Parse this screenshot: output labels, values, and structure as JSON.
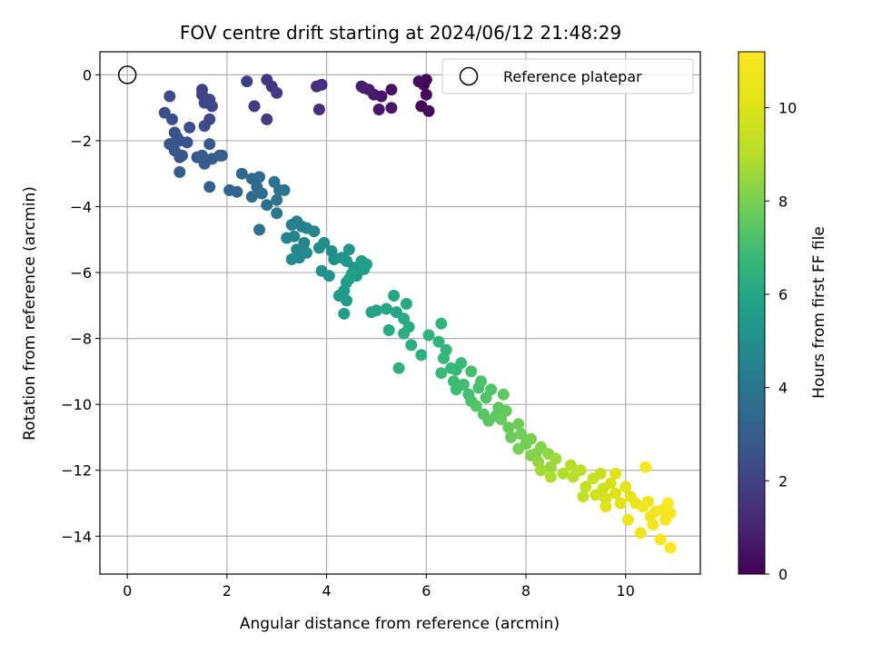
{
  "chart_data": {
    "type": "scatter",
    "title": "FOV centre drift starting at 2024/06/12 21:48:29",
    "xlabel": "Angular distance from reference (arcmin)",
    "ylabel": "Rotation from reference (arcmin)",
    "xlim": [
      -0.55,
      11.5
    ],
    "ylim": [
      -15.15,
      0.7
    ],
    "xticks": [
      0,
      2,
      4,
      6,
      8,
      10
    ],
    "yticks": [
      0,
      -2,
      -4,
      -6,
      -8,
      -10,
      -12,
      -14
    ],
    "grid": true,
    "colormap": "viridis",
    "colorbar": {
      "label": "Hours from first FF file",
      "range": [
        0,
        11.2
      ],
      "ticks": [
        0,
        2,
        4,
        6,
        8,
        10
      ]
    },
    "legend": {
      "position": "top-right",
      "entries": [
        {
          "label": "Reference platepar",
          "marker": "open-circle"
        }
      ]
    },
    "reference_point": {
      "x": 0,
      "y": 0
    },
    "colors": {
      "grid": "#b0b0b0",
      "reference_edge": "#000000",
      "spine": "#000000"
    },
    "series": [
      {
        "points": [
          [
            6.0,
            -0.15,
            0.1
          ],
          [
            5.95,
            -0.3,
            0.15
          ],
          [
            5.9,
            -0.95,
            0.2
          ],
          [
            6.05,
            -1.1,
            0.25
          ],
          [
            6.0,
            -0.6,
            0.3
          ],
          [
            5.85,
            -0.2,
            0.35
          ],
          [
            5.3,
            -0.45,
            0.5
          ],
          [
            5.1,
            -0.65,
            0.55
          ],
          [
            5.05,
            -1.05,
            0.6
          ],
          [
            5.3,
            -1.0,
            0.6
          ],
          [
            4.95,
            -0.6,
            0.7
          ],
          [
            4.85,
            -0.45,
            0.8
          ],
          [
            4.75,
            -0.4,
            0.85
          ],
          [
            4.7,
            -0.35,
            0.9
          ],
          [
            3.9,
            -0.3,
            1.3
          ],
          [
            3.8,
            -0.35,
            1.35
          ],
          [
            3.85,
            -1.05,
            1.4
          ],
          [
            2.8,
            -0.15,
            1.6
          ],
          [
            2.9,
            -0.35,
            1.65
          ],
          [
            3.0,
            -0.55,
            1.7
          ],
          [
            2.8,
            -1.35,
            1.75
          ],
          [
            2.55,
            -0.95,
            1.8
          ],
          [
            2.4,
            -0.2,
            1.85
          ],
          [
            1.5,
            -0.45,
            2.0
          ],
          [
            1.5,
            -0.6,
            2.05
          ],
          [
            1.65,
            -0.75,
            2.1
          ],
          [
            1.55,
            -0.85,
            2.15
          ],
          [
            1.7,
            -0.95,
            2.2
          ],
          [
            1.65,
            -1.35,
            2.2
          ],
          [
            0.85,
            -0.65,
            2.3
          ],
          [
            1.55,
            -1.55,
            2.35
          ],
          [
            0.9,
            -1.35,
            2.45
          ],
          [
            1.25,
            -1.6,
            2.45
          ],
          [
            0.75,
            -1.15,
            2.5
          ],
          [
            0.95,
            -1.75,
            2.5
          ],
          [
            1.0,
            -1.9,
            2.55
          ],
          [
            1.05,
            -2.0,
            2.6
          ],
          [
            1.2,
            -2.05,
            2.6
          ],
          [
            0.85,
            -2.1,
            2.65
          ],
          [
            0.95,
            -2.3,
            2.7
          ],
          [
            1.05,
            -2.5,
            2.7
          ],
          [
            1.1,
            -2.45,
            2.75
          ],
          [
            1.65,
            -2.1,
            2.8
          ],
          [
            1.4,
            -2.5,
            2.85
          ],
          [
            1.55,
            -2.7,
            2.9
          ],
          [
            1.7,
            -2.55,
            2.9
          ],
          [
            1.5,
            -2.45,
            2.95
          ],
          [
            1.85,
            -2.45,
            3.0
          ],
          [
            1.05,
            -2.95,
            3.0
          ],
          [
            1.65,
            -3.4,
            3.05
          ],
          [
            2.05,
            -3.5,
            3.2
          ],
          [
            2.2,
            -3.55,
            3.25
          ],
          [
            2.3,
            -3.0,
            3.3
          ],
          [
            2.5,
            -3.15,
            3.4
          ],
          [
            2.65,
            -3.1,
            3.45
          ],
          [
            2.5,
            -3.7,
            3.5
          ],
          [
            2.6,
            -3.4,
            3.55
          ],
          [
            2.7,
            -3.6,
            3.6
          ],
          [
            2.8,
            -3.95,
            3.7
          ],
          [
            2.65,
            -4.7,
            3.75
          ],
          [
            2.95,
            -3.25,
            3.8
          ],
          [
            3.05,
            -3.5,
            3.85
          ],
          [
            3.15,
            -3.5,
            3.9
          ],
          [
            3.0,
            -3.8,
            3.95
          ],
          [
            3.0,
            -4.2,
            4.0
          ],
          [
            3.3,
            -4.55,
            4.3
          ],
          [
            3.4,
            -4.45,
            4.4
          ],
          [
            3.5,
            -4.6,
            4.45
          ],
          [
            3.6,
            -4.65,
            4.5
          ],
          [
            3.35,
            -4.9,
            4.55
          ],
          [
            3.75,
            -4.75,
            4.6
          ],
          [
            3.55,
            -5.1,
            4.6
          ],
          [
            3.4,
            -5.3,
            4.65
          ],
          [
            3.6,
            -5.4,
            4.7
          ],
          [
            3.45,
            -5.55,
            4.75
          ],
          [
            3.3,
            -5.6,
            4.8
          ],
          [
            3.85,
            -5.25,
            4.85
          ],
          [
            3.95,
            -5.1,
            4.9
          ],
          [
            4.1,
            -5.35,
            4.95
          ],
          [
            4.15,
            -5.6,
            5.0
          ],
          [
            3.9,
            -5.95,
            5.05
          ],
          [
            4.05,
            -6.1,
            5.1
          ],
          [
            4.3,
            -5.55,
            5.15
          ],
          [
            4.45,
            -5.3,
            5.2
          ],
          [
            4.4,
            -5.65,
            5.25
          ],
          [
            4.55,
            -5.85,
            5.3
          ],
          [
            4.6,
            -6.1,
            5.35
          ],
          [
            4.4,
            -6.3,
            5.4
          ],
          [
            4.35,
            -6.55,
            5.45
          ],
          [
            4.25,
            -6.7,
            5.5
          ],
          [
            4.4,
            -6.85,
            5.55
          ],
          [
            4.35,
            -7.25,
            5.6
          ],
          [
            4.7,
            -5.65,
            5.6
          ],
          [
            4.75,
            -5.9,
            5.65
          ],
          [
            4.5,
            -6.05,
            5.7
          ],
          [
            4.45,
            -6.2,
            5.75
          ],
          [
            4.9,
            -7.2,
            5.8
          ],
          [
            5.0,
            -7.15,
            5.85
          ],
          [
            5.2,
            -7.1,
            5.9
          ],
          [
            5.35,
            -6.7,
            5.95
          ],
          [
            5.4,
            -7.2,
            6.0
          ],
          [
            5.25,
            -7.75,
            6.05
          ],
          [
            5.6,
            -6.95,
            6.1
          ],
          [
            5.55,
            -7.4,
            6.15
          ],
          [
            5.65,
            -7.65,
            6.2
          ],
          [
            5.55,
            -7.85,
            6.25
          ],
          [
            5.7,
            -8.2,
            6.3
          ],
          [
            5.9,
            -8.5,
            6.35
          ],
          [
            5.45,
            -8.9,
            6.4
          ],
          [
            6.05,
            -7.9,
            6.5
          ],
          [
            6.3,
            -7.55,
            6.55
          ],
          [
            6.25,
            -8.1,
            6.6
          ],
          [
            6.4,
            -8.35,
            6.65
          ],
          [
            6.35,
            -8.6,
            6.7
          ],
          [
            6.5,
            -8.9,
            6.75
          ],
          [
            6.7,
            -8.75,
            6.8
          ],
          [
            6.3,
            -9.05,
            6.8
          ],
          [
            6.55,
            -9.3,
            6.85
          ],
          [
            6.6,
            -9.55,
            6.9
          ],
          [
            6.75,
            -9.4,
            6.95
          ],
          [
            6.85,
            -9.7,
            7.0
          ],
          [
            6.9,
            -9.0,
            7.05
          ],
          [
            7.05,
            -9.5,
            7.1
          ],
          [
            6.9,
            -9.9,
            7.15
          ],
          [
            7.1,
            -9.3,
            7.2
          ],
          [
            7.3,
            -9.55,
            7.25
          ],
          [
            7.2,
            -9.8,
            7.3
          ],
          [
            7.0,
            -10.05,
            7.35
          ],
          [
            7.15,
            -10.3,
            7.4
          ],
          [
            7.25,
            -10.5,
            7.45
          ],
          [
            7.45,
            -10.1,
            7.5
          ],
          [
            7.55,
            -9.7,
            7.55
          ],
          [
            7.6,
            -10.2,
            7.6
          ],
          [
            7.5,
            -10.45,
            7.65
          ],
          [
            7.65,
            -10.7,
            7.7
          ],
          [
            7.7,
            -11.0,
            7.75
          ],
          [
            7.85,
            -10.6,
            7.8
          ],
          [
            7.9,
            -10.9,
            7.85
          ],
          [
            8.0,
            -11.2,
            7.9
          ],
          [
            7.85,
            -11.35,
            7.95
          ],
          [
            8.1,
            -11.05,
            8.0
          ],
          [
            8.2,
            -11.5,
            8.1
          ],
          [
            8.3,
            -11.3,
            8.2
          ],
          [
            8.45,
            -11.5,
            8.3
          ],
          [
            8.25,
            -11.75,
            8.4
          ],
          [
            8.5,
            -11.9,
            8.5
          ],
          [
            8.6,
            -11.65,
            8.6
          ],
          [
            8.3,
            -12.0,
            8.7
          ],
          [
            8.5,
            -12.2,
            8.8
          ],
          [
            8.75,
            -12.1,
            8.9
          ],
          [
            8.9,
            -11.85,
            9.0
          ],
          [
            8.95,
            -12.2,
            9.1
          ],
          [
            9.1,
            -12.0,
            9.2
          ],
          [
            9.2,
            -12.5,
            9.3
          ],
          [
            9.35,
            -12.25,
            9.4
          ],
          [
            9.5,
            -12.1,
            9.5
          ],
          [
            9.55,
            -12.55,
            9.6
          ],
          [
            9.4,
            -12.75,
            9.7
          ],
          [
            9.6,
            -12.85,
            9.8
          ],
          [
            9.7,
            -12.4,
            9.9
          ],
          [
            9.8,
            -12.7,
            10.0
          ],
          [
            9.6,
            -13.1,
            10.1
          ],
          [
            9.9,
            -13.0,
            10.2
          ],
          [
            10.0,
            -12.5,
            10.3
          ],
          [
            10.1,
            -12.8,
            10.4
          ],
          [
            10.2,
            -13.0,
            10.5
          ],
          [
            10.05,
            -13.5,
            10.6
          ],
          [
            10.35,
            -13.1,
            10.7
          ],
          [
            10.45,
            -12.95,
            10.75
          ],
          [
            10.5,
            -13.4,
            10.8
          ],
          [
            10.6,
            -13.25,
            10.85
          ],
          [
            10.75,
            -13.2,
            10.9
          ],
          [
            10.8,
            -13.5,
            10.95
          ],
          [
            10.9,
            -13.3,
            11.0
          ],
          [
            10.7,
            -14.1,
            11.05
          ],
          [
            10.9,
            -14.35,
            11.1
          ],
          [
            10.85,
            -13.0,
            11.12
          ],
          [
            10.4,
            -11.9,
            11.0
          ],
          [
            9.8,
            -12.1,
            10.1
          ],
          [
            10.3,
            -13.9,
            10.6
          ],
          [
            10.55,
            -13.65,
            10.9
          ],
          [
            9.15,
            -12.8,
            9.25
          ],
          [
            8.1,
            -11.55,
            8.15
          ],
          [
            7.4,
            -10.35,
            7.45
          ],
          [
            6.6,
            -8.95,
            6.75
          ],
          [
            4.8,
            -5.75,
            5.6
          ],
          [
            3.2,
            -4.95,
            4.5
          ],
          [
            1.9,
            -2.45,
            3.0
          ]
        ]
      }
    ]
  }
}
